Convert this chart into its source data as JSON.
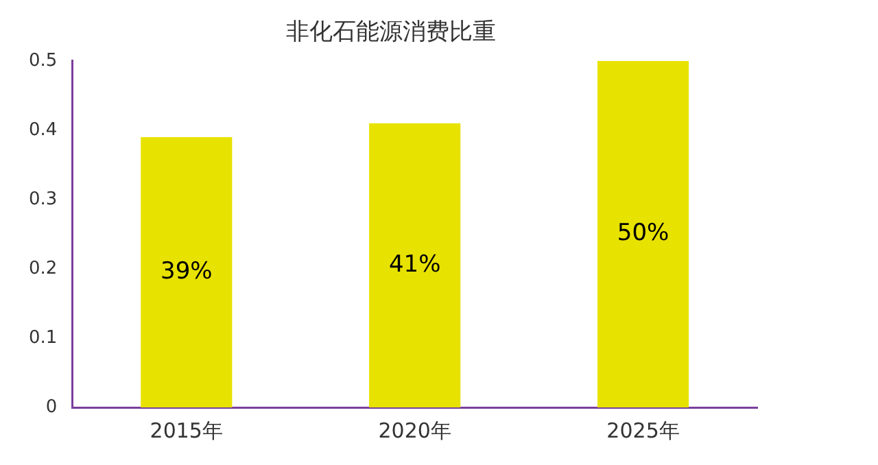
{
  "chart_data": {
    "type": "bar",
    "title": "非化石能源消费比重",
    "categories": [
      "2015年",
      "2020年",
      "2025年"
    ],
    "values": [
      0.39,
      0.41,
      0.5
    ],
    "value_labels": [
      "39%",
      "41%",
      "50%"
    ],
    "color": "#e8e200",
    "ylim": [
      0,
      0.5
    ],
    "yticks": [
      0,
      0.1,
      0.2,
      0.3,
      0.4,
      0.5
    ],
    "grid": false,
    "legend": false
  }
}
